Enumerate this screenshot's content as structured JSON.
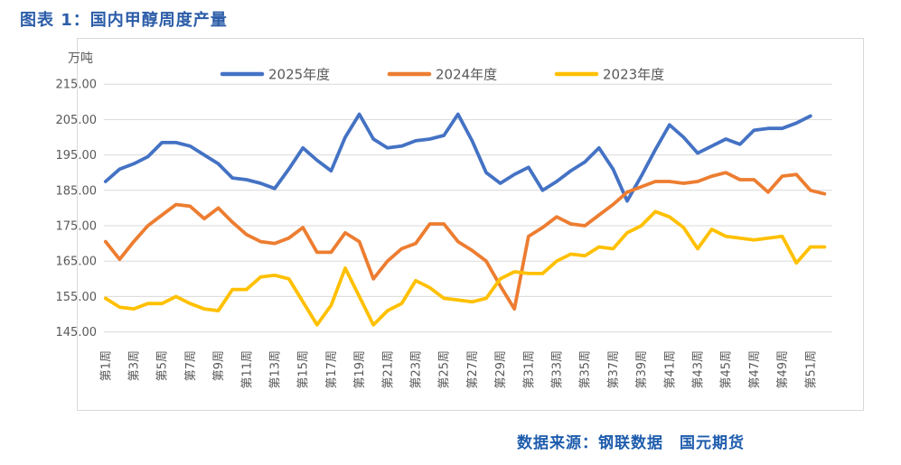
{
  "page": {
    "title": "图表 1：国内甲醇周度产量",
    "source_text": "数据来源：钢联数据　国元期货"
  },
  "chart_data": {
    "type": "line",
    "title": "图表 1：国内甲醇周度产量",
    "unit_label": "万吨",
    "legend_position": "top",
    "grid": true,
    "x_axis": {
      "total_weeks": 52,
      "tick_weeks": [
        1,
        3,
        5,
        7,
        9,
        11,
        13,
        15,
        17,
        19,
        21,
        23,
        25,
        27,
        29,
        31,
        33,
        35,
        37,
        39,
        41,
        43,
        45,
        47,
        49,
        51
      ],
      "tick_labels": [
        "第1周",
        "第3周",
        "第5周",
        "第7周",
        "第9周",
        "第11周",
        "第13周",
        "第15周",
        "第17周",
        "第19周",
        "第21周",
        "第23周",
        "第25周",
        "第27周",
        "第29周",
        "第31周",
        "第33周",
        "第35周",
        "第37周",
        "第39周",
        "第41周",
        "第43周",
        "第45周",
        "第47周",
        "第49周",
        "第51周"
      ]
    },
    "y_axis": {
      "min": 145,
      "max": 215,
      "step": 10,
      "decimals": 2
    },
    "series": [
      {
        "name": "2025年度",
        "color": "#4472C4",
        "start_week": 1,
        "values": [
          187.5,
          191,
          192.5,
          194.5,
          198.5,
          198.5,
          197.5,
          195,
          192.5,
          188.5,
          188,
          187,
          185.5,
          191,
          197,
          193.5,
          190.5,
          200,
          206.5,
          199.5,
          197,
          197.5,
          199,
          199.5,
          200.5,
          206.5,
          199,
          190,
          187,
          189.5,
          191.5,
          185,
          187.5,
          190.5,
          193,
          197,
          191,
          182,
          189,
          196.5,
          203.5,
          200,
          195.5,
          197.5,
          199.5,
          198,
          202,
          202.5,
          202.5,
          204,
          206
        ]
      },
      {
        "name": "2024年度",
        "color": "#ED7D31",
        "start_week": 1,
        "values": [
          170.5,
          165.5,
          170.5,
          175,
          178,
          181,
          180.5,
          177,
          180,
          176,
          172.5,
          170.5,
          170,
          171.5,
          174.5,
          167.5,
          167.5,
          173,
          170.5,
          160,
          165,
          168.5,
          170,
          175.5,
          175.5,
          170.5,
          168,
          165,
          158,
          151.5,
          172,
          174.5,
          177.5,
          175.5,
          175,
          178,
          181,
          184.5,
          186,
          187.5,
          187.5,
          187,
          187.5,
          189,
          190,
          188,
          188,
          184.5,
          189,
          189.5,
          185,
          184
        ]
      },
      {
        "name": "2023年度",
        "color": "#FFC000",
        "start_week": 1,
        "values": [
          154.5,
          152,
          151.5,
          153,
          153,
          155,
          153,
          151.5,
          151,
          157,
          157,
          160.5,
          161,
          160,
          153.5,
          147,
          152.5,
          163,
          155,
          147,
          151,
          153,
          159.5,
          157.5,
          154.5,
          154,
          153.5,
          154.5,
          160,
          162,
          161.5,
          161.5,
          165,
          167,
          166.5,
          169,
          168.5,
          173,
          175,
          179,
          177.5,
          174.5,
          168.5,
          174,
          172,
          171.5,
          171,
          171.5,
          172,
          164.5,
          169,
          169
        ]
      }
    ]
  },
  "colors": {
    "title": "#2B5CA8",
    "source": "#1E5CAD",
    "axis_text": "#595959",
    "gridline": "#D9D9D9",
    "frame": "#D9D9D9",
    "background": "#FFFFFF"
  }
}
